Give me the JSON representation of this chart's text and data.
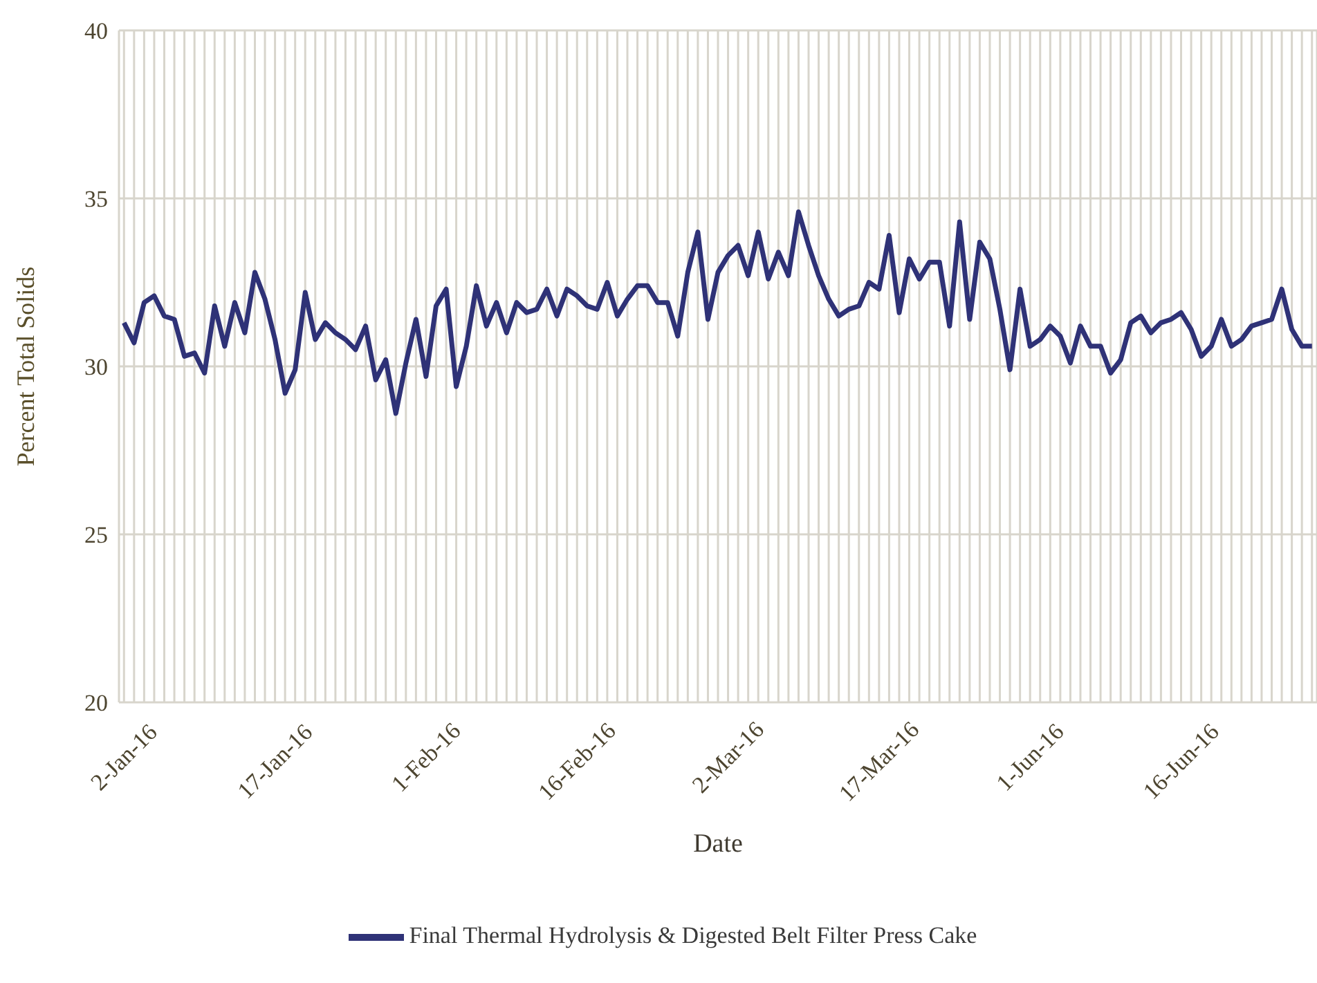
{
  "chart_data": {
    "type": "line",
    "xlabel": "Date",
    "ylabel": "Percent Total Solids",
    "categories": [
      "2-Jan-16",
      null,
      null,
      null,
      null,
      null,
      null,
      null,
      null,
      null,
      null,
      null,
      null,
      null,
      null,
      "17-Jan-16",
      null,
      null,
      null,
      null,
      null,
      null,
      null,
      null,
      null,
      null,
      null,
      null,
      null,
      null,
      "1-Feb-16",
      null,
      null,
      null,
      null,
      null,
      null,
      null,
      null,
      null,
      null,
      null,
      null,
      null,
      null,
      "16-Feb-16",
      null,
      null,
      null,
      null,
      null,
      null,
      null,
      null,
      null,
      null,
      null,
      null,
      null,
      null,
      "2-Mar-16",
      null,
      null,
      null,
      null,
      null,
      null,
      null,
      null,
      null,
      null,
      null,
      null,
      null,
      null,
      "17-Mar-16",
      null,
      null,
      null,
      null,
      null,
      null,
      null,
      null,
      null,
      null,
      null,
      null,
      null,
      null,
      "1-Jun-16",
      null,
      null,
      null,
      null,
      null,
      null,
      null,
      null,
      null,
      null,
      null,
      null,
      null,
      null,
      "16-Jun-16",
      null,
      null,
      null,
      null,
      null,
      null,
      null,
      null,
      null,
      null,
      null,
      null,
      null
    ],
    "series": [
      {
        "name": "Final Thermal Hydrolysis & Digested Belt Filter Press Cake",
        "color": "#2f3277",
        "values": [
          31.3,
          30.7,
          31.9,
          32.1,
          31.5,
          31.4,
          30.3,
          30.4,
          29.8,
          31.8,
          30.6,
          31.9,
          31.0,
          32.8,
          32.0,
          30.8,
          29.2,
          29.9,
          32.2,
          30.8,
          31.3,
          31.0,
          30.8,
          30.5,
          31.2,
          29.6,
          30.2,
          28.6,
          30.1,
          31.4,
          29.7,
          31.8,
          32.3,
          29.4,
          30.6,
          32.4,
          31.2,
          31.9,
          31.0,
          31.9,
          31.6,
          31.7,
          32.3,
          31.5,
          32.3,
          32.1,
          31.8,
          31.7,
          32.5,
          31.5,
          32.0,
          32.4,
          32.4,
          31.9,
          31.9,
          30.9,
          32.8,
          34.0,
          31.4,
          32.8,
          33.3,
          33.6,
          32.7,
          34.0,
          32.6,
          33.4,
          32.7,
          34.6,
          33.6,
          32.7,
          32.0,
          31.5,
          31.7,
          31.8,
          32.5,
          32.3,
          33.9,
          31.6,
          33.2,
          32.6,
          33.1,
          33.1,
          31.2,
          34.3,
          31.4,
          33.7,
          33.2,
          31.7,
          29.9,
          32.3,
          30.6,
          30.8,
          31.2,
          30.9,
          30.1,
          31.2,
          30.6,
          30.6,
          29.8,
          30.2,
          31.3,
          31.5,
          31.0,
          31.3,
          31.4,
          31.6,
          31.1,
          30.3,
          30.6,
          31.4,
          30.6,
          30.8,
          31.2,
          31.3,
          31.4,
          32.3,
          31.1,
          30.6,
          30.6
        ]
      }
    ],
    "ylim": [
      20,
      40
    ],
    "yticks": [
      20,
      25,
      30,
      35,
      40
    ],
    "grid": true,
    "legend": "bottom",
    "line_style": "solid",
    "marker": "none"
  }
}
